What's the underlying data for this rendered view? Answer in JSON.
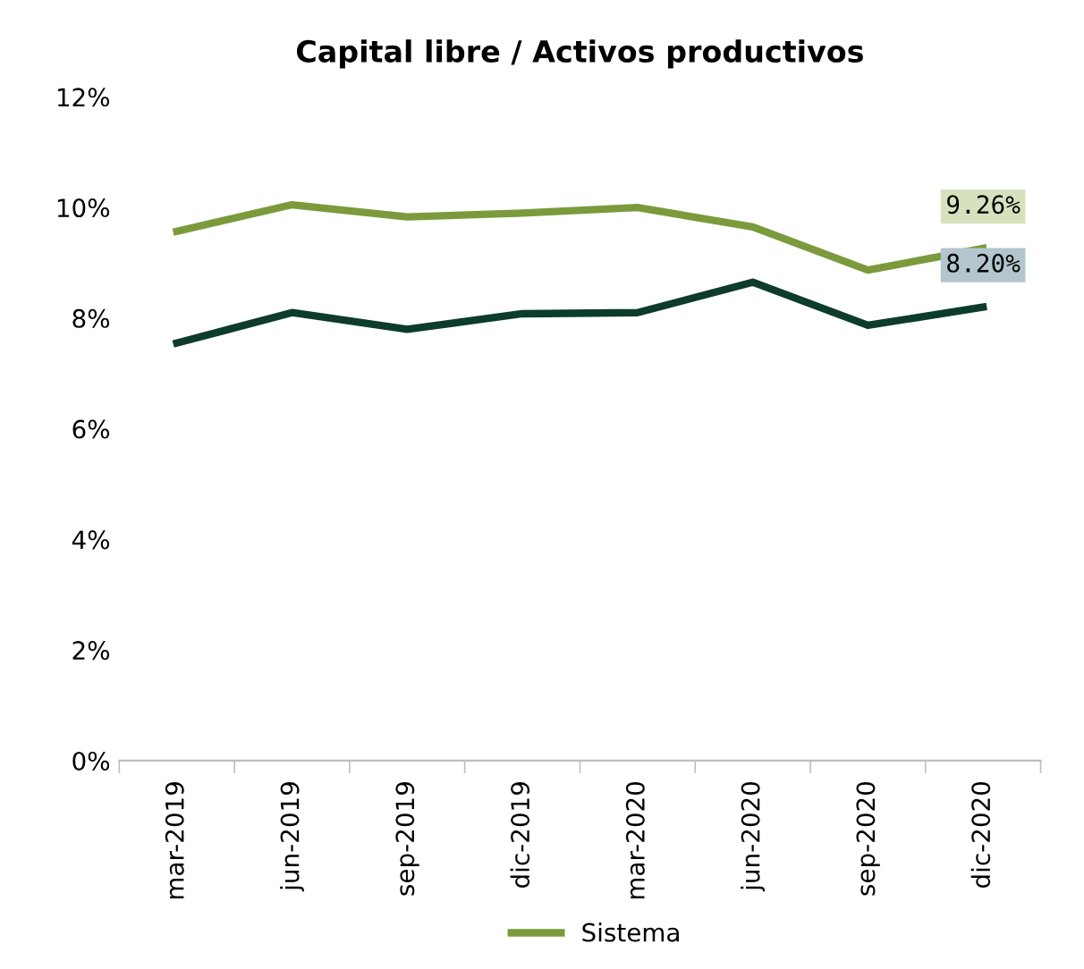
{
  "chart_data": {
    "type": "line",
    "title": "Capital libre / Activos productivos",
    "categories": [
      "mar-2019",
      "jun-2019",
      "sep-2019",
      "dic-2019",
      "mar-2020",
      "jun-2020",
      "sep-2020",
      "dic-2020"
    ],
    "series": [
      {
        "color": "#0d3b2c",
        "values": [
          7.55,
          8.1,
          7.8,
          8.08,
          8.1,
          8.65,
          7.87,
          8.2
        ],
        "value_labels": [
          null,
          null,
          null,
          null,
          null,
          null,
          null,
          "8.20%"
        ]
      },
      {
        "name": "Sistema",
        "color": "#7b9a3c",
        "values": [
          9.57,
          10.05,
          9.83,
          9.9,
          10.0,
          9.65,
          8.87,
          9.26
        ],
        "value_labels": [
          null,
          null,
          null,
          null,
          null,
          null,
          null,
          "9.26%"
        ]
      }
    ],
    "ylim": [
      0,
      12
    ],
    "yticks": [
      {
        "value": 0,
        "label": "0%"
      },
      {
        "value": 2,
        "label": "2%"
      },
      {
        "value": 4,
        "label": "4%"
      },
      {
        "value": 6,
        "label": "6%"
      },
      {
        "value": 8,
        "label": "8%"
      },
      {
        "value": 10,
        "label": "10%"
      },
      {
        "value": 12,
        "label": "12%"
      }
    ],
    "grid": false,
    "legend": "bottom",
    "marker": "none",
    "line_style": "solid"
  }
}
